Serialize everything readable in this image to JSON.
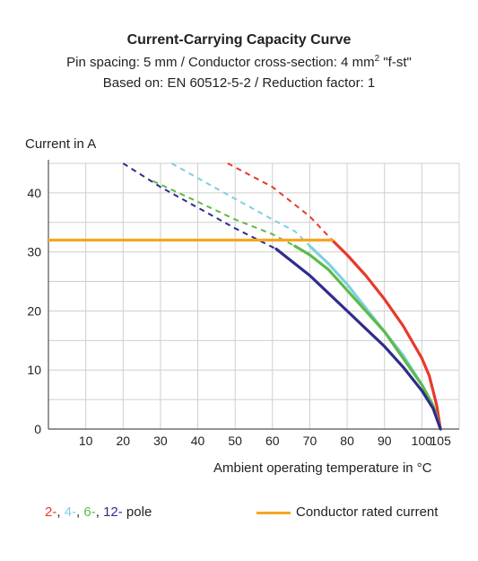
{
  "header": {
    "title": "Current-Carrying Capacity Curve",
    "subtitle_pre": "Pin spacing: 5 mm / Conductor cross-section: 4 mm",
    "subtitle_sup": "2",
    "subtitle_post": " \"f-st\"",
    "subtitle2": "Based on: EN 60512-5-2 / Reduction factor: 1"
  },
  "legend": {
    "pole_items": [
      {
        "text": "2-",
        "color": "#e8392b"
      },
      {
        "text": "4-",
        "color": "#7fd0e0"
      },
      {
        "text": "6-",
        "color": "#5cbb4a"
      },
      {
        "text": "12-",
        "color": "#2e2c8c"
      }
    ],
    "pole_suffix": "pole",
    "rated_label": "Conductor rated current",
    "rated_color": "#f5a623"
  },
  "chart_data": {
    "type": "line",
    "xlabel": "Ambient operating temperature in °C",
    "ylabel": "Current in A",
    "xlim": [
      0,
      110
    ],
    "ylim": [
      0,
      45
    ],
    "x_ticks": [
      10,
      20,
      30,
      40,
      50,
      60,
      70,
      80,
      90,
      100,
      105
    ],
    "y_ticks": [
      0,
      10,
      20,
      30,
      40
    ],
    "grid": true,
    "series": [
      {
        "name": "2-",
        "color": "#e8392b",
        "dashed": [
          [
            48,
            45
          ],
          [
            60,
            41
          ],
          [
            70,
            36
          ],
          [
            76,
            32
          ]
        ],
        "solid": [
          [
            76,
            32
          ],
          [
            80,
            29.5
          ],
          [
            85,
            26
          ],
          [
            90,
            22
          ],
          [
            95,
            17.5
          ],
          [
            100,
            12
          ],
          [
            102,
            9
          ],
          [
            104,
            4
          ],
          [
            105,
            0
          ]
        ]
      },
      {
        "name": "4-",
        "color": "#7fd0e0",
        "dashed": [
          [
            33,
            45
          ],
          [
            40,
            42.5
          ],
          [
            50,
            39
          ],
          [
            60,
            35.5
          ],
          [
            66,
            33.5
          ],
          [
            70,
            31
          ]
        ],
        "solid": [
          [
            70,
            31
          ],
          [
            75,
            28
          ],
          [
            80,
            24.5
          ],
          [
            85,
            20.5
          ],
          [
            90,
            16.5
          ],
          [
            95,
            12.5
          ],
          [
            100,
            7.5
          ],
          [
            103,
            4
          ],
          [
            105,
            0
          ]
        ]
      },
      {
        "name": "6-",
        "color": "#5cbb4a",
        "dashed": [
          [
            28,
            42
          ],
          [
            40,
            38.5
          ],
          [
            50,
            35.5
          ],
          [
            60,
            33
          ],
          [
            66,
            31
          ]
        ],
        "solid": [
          [
            66,
            31
          ],
          [
            70,
            29.5
          ],
          [
            75,
            27
          ],
          [
            80,
            23.5
          ],
          [
            85,
            20
          ],
          [
            90,
            16.5
          ],
          [
            95,
            12
          ],
          [
            100,
            7.5
          ],
          [
            103,
            4
          ],
          [
            105,
            0
          ]
        ]
      },
      {
        "name": "12-",
        "color": "#2e2c8c",
        "dashed": [
          [
            20,
            45
          ],
          [
            30,
            41
          ],
          [
            40,
            37.5
          ],
          [
            50,
            34
          ],
          [
            61,
            30.5
          ]
        ],
        "solid": [
          [
            61,
            30.5
          ],
          [
            65,
            28.5
          ],
          [
            70,
            26
          ],
          [
            75,
            23
          ],
          [
            80,
            20
          ],
          [
            85,
            17
          ],
          [
            90,
            14
          ],
          [
            95,
            10.5
          ],
          [
            100,
            6.5
          ],
          [
            103,
            3.5
          ],
          [
            105,
            0
          ]
        ]
      },
      {
        "name": "Conductor rated current",
        "color": "#f5a623",
        "solid": [
          [
            0,
            32
          ],
          [
            76,
            32
          ]
        ]
      }
    ]
  }
}
